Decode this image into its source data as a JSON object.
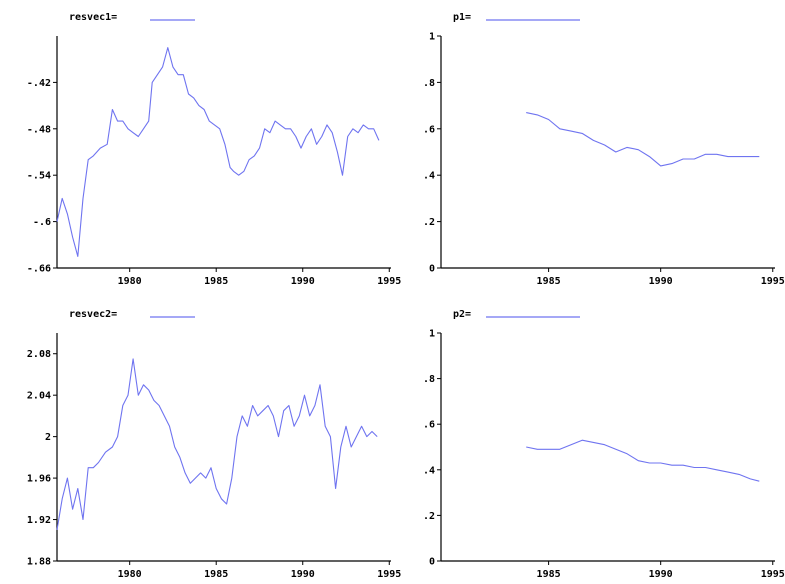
{
  "series_color": "#6f74f0",
  "chart_data": [
    {
      "type": "line",
      "legend_label": "resvec1=",
      "xlim": [
        1975.8,
        1995.1
      ],
      "ylim": [
        -0.66,
        -0.36
      ],
      "xticks": [
        1980,
        1985,
        1990,
        1995
      ],
      "yticks": [
        -0.66,
        -0.6,
        -0.54,
        -0.48,
        -0.42
      ],
      "ytick_labels": [
        "-.66",
        "-.6",
        "-.54",
        "-.48",
        "-.42"
      ],
      "x": [
        1975.8,
        1976.1,
        1976.4,
        1976.7,
        1977.0,
        1977.3,
        1977.6,
        1977.9,
        1978.3,
        1978.7,
        1979.0,
        1979.3,
        1979.6,
        1979.9,
        1980.2,
        1980.5,
        1980.8,
        1981.1,
        1981.3,
        1981.6,
        1981.9,
        1982.2,
        1982.5,
        1982.8,
        1983.1,
        1983.4,
        1983.7,
        1984.0,
        1984.3,
        1984.6,
        1984.9,
        1985.2,
        1985.5,
        1985.8,
        1986.0,
        1986.3,
        1986.6,
        1986.9,
        1987.2,
        1987.5,
        1987.8,
        1988.1,
        1988.4,
        1988.7,
        1989.0,
        1989.3,
        1989.6,
        1989.9,
        1990.2,
        1990.5,
        1990.8,
        1991.1,
        1991.4,
        1991.7,
        1992.0,
        1992.3,
        1992.6,
        1992.9,
        1993.2,
        1993.5,
        1993.8,
        1994.1,
        1994.4
      ],
      "y": [
        -0.6,
        -0.57,
        -0.59,
        -0.62,
        -0.645,
        -0.57,
        -0.52,
        -0.515,
        -0.505,
        -0.5,
        -0.455,
        -0.47,
        -0.47,
        -0.48,
        -0.485,
        -0.49,
        -0.48,
        -0.47,
        -0.42,
        -0.41,
        -0.4,
        -0.375,
        -0.4,
        -0.41,
        -0.41,
        -0.435,
        -0.44,
        -0.45,
        -0.455,
        -0.47,
        -0.475,
        -0.48,
        -0.5,
        -0.53,
        -0.535,
        -0.54,
        -0.535,
        -0.52,
        -0.515,
        -0.505,
        -0.48,
        -0.485,
        -0.47,
        -0.475,
        -0.48,
        -0.48,
        -0.49,
        -0.505,
        -0.49,
        -0.48,
        -0.5,
        -0.49,
        -0.475,
        -0.485,
        -0.51,
        -0.54,
        -0.49,
        -0.48,
        -0.485,
        -0.475,
        -0.48,
        -0.48,
        -0.495
      ]
    },
    {
      "type": "line",
      "legend_label": "p1=",
      "xlim": [
        1980.2,
        1995.1
      ],
      "ylim": [
        0,
        1
      ],
      "xticks": [
        1985,
        1990,
        1995
      ],
      "yticks": [
        0,
        0.2,
        0.4,
        0.6,
        0.8,
        1
      ],
      "ytick_labels": [
        "0",
        ".2",
        ".4",
        ".6",
        ".8",
        "1"
      ],
      "x": [
        1984.0,
        1984.5,
        1985.0,
        1985.5,
        1986.0,
        1986.5,
        1987.0,
        1987.5,
        1988.0,
        1988.5,
        1989.0,
        1989.5,
        1990.0,
        1990.5,
        1991.0,
        1991.5,
        1992.0,
        1992.5,
        1993.0,
        1993.5,
        1994.0,
        1994.4
      ],
      "y": [
        0.67,
        0.66,
        0.64,
        0.6,
        0.59,
        0.58,
        0.55,
        0.53,
        0.5,
        0.52,
        0.51,
        0.48,
        0.44,
        0.45,
        0.47,
        0.47,
        0.49,
        0.49,
        0.48,
        0.48,
        0.48,
        0.48
      ]
    },
    {
      "type": "line",
      "legend_label": "resvec2=",
      "xlim": [
        1975.8,
        1995.1
      ],
      "ylim": [
        1.88,
        2.1
      ],
      "xticks": [
        1980,
        1985,
        1990,
        1995
      ],
      "yticks": [
        1.88,
        1.92,
        1.96,
        2,
        2.04,
        2.08
      ],
      "ytick_labels": [
        "1.88",
        "1.92",
        "1.96",
        "2",
        "2.04",
        "2.08"
      ],
      "x": [
        1975.8,
        1976.1,
        1976.4,
        1976.7,
        1977.0,
        1977.3,
        1977.6,
        1977.9,
        1978.2,
        1978.6,
        1979.0,
        1979.3,
        1979.6,
        1979.9,
        1980.2,
        1980.5,
        1980.8,
        1981.1,
        1981.4,
        1981.7,
        1982.0,
        1982.3,
        1982.6,
        1982.9,
        1983.2,
        1983.5,
        1983.8,
        1984.1,
        1984.4,
        1984.7,
        1985.0,
        1985.3,
        1985.6,
        1985.9,
        1986.2,
        1986.5,
        1986.8,
        1987.1,
        1987.4,
        1987.7,
        1988.0,
        1988.3,
        1988.6,
        1988.9,
        1989.2,
        1989.5,
        1989.8,
        1990.1,
        1990.4,
        1990.7,
        1991.0,
        1991.3,
        1991.6,
        1991.9,
        1992.2,
        1992.5,
        1992.8,
        1993.1,
        1993.4,
        1993.7,
        1994.0,
        1994.3
      ],
      "y": [
        1.91,
        1.94,
        1.96,
        1.93,
        1.95,
        1.92,
        1.97,
        1.97,
        1.975,
        1.985,
        1.99,
        2.0,
        2.03,
        2.04,
        2.075,
        2.04,
        2.05,
        2.045,
        2.035,
        2.03,
        2.02,
        2.01,
        1.99,
        1.98,
        1.965,
        1.955,
        1.96,
        1.965,
        1.96,
        1.97,
        1.95,
        1.94,
        1.935,
        1.96,
        2.0,
        2.02,
        2.01,
        2.03,
        2.02,
        2.025,
        2.03,
        2.02,
        2.0,
        2.025,
        2.03,
        2.01,
        2.02,
        2.04,
        2.02,
        2.03,
        2.05,
        2.01,
        2.0,
        1.95,
        1.99,
        2.01,
        1.99,
        2.0,
        2.01,
        2.0,
        2.005,
        2.0
      ]
    },
    {
      "type": "line",
      "legend_label": "p2=",
      "xlim": [
        1980.2,
        1995.1
      ],
      "ylim": [
        0,
        1
      ],
      "xticks": [
        1985,
        1990,
        1995
      ],
      "yticks": [
        0,
        0.2,
        0.4,
        0.6,
        0.8,
        1
      ],
      "ytick_labels": [
        "0",
        ".2",
        ".4",
        ".6",
        ".8",
        "1"
      ],
      "x": [
        1984.0,
        1984.5,
        1985.0,
        1985.5,
        1986.0,
        1986.5,
        1987.0,
        1987.5,
        1988.0,
        1988.5,
        1989.0,
        1989.5,
        1990.0,
        1990.5,
        1991.0,
        1991.5,
        1992.0,
        1992.5,
        1993.0,
        1993.5,
        1994.0,
        1994.4
      ],
      "y": [
        0.5,
        0.49,
        0.49,
        0.49,
        0.51,
        0.53,
        0.52,
        0.51,
        0.49,
        0.47,
        0.44,
        0.43,
        0.43,
        0.42,
        0.42,
        0.41,
        0.41,
        0.4,
        0.39,
        0.38,
        0.36,
        0.35
      ]
    }
  ]
}
